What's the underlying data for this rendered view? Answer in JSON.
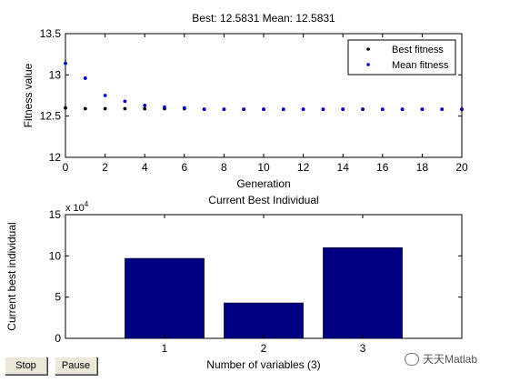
{
  "controls": {
    "stop_label": "Stop",
    "pause_label": "Pause"
  },
  "watermark": {
    "text": "天天Matlab",
    "icon": "wechat-icon"
  },
  "chart_data": [
    {
      "type": "scatter",
      "title": "Best: 12.5831 Mean: 12.5831",
      "xlabel": "Generation",
      "ylabel": "Fitness value",
      "xlim": [
        0,
        20
      ],
      "ylim": [
        12,
        13.5
      ],
      "xticks": [
        0,
        2,
        4,
        6,
        8,
        10,
        12,
        14,
        16,
        18,
        20
      ],
      "yticks": [
        12,
        12.5,
        13,
        13.5
      ],
      "grid": false,
      "legend_position": "top-right",
      "series": [
        {
          "name": "Best fitness",
          "color": "#000000",
          "x": [
            0,
            1,
            2,
            3,
            4,
            5,
            6,
            7,
            8,
            9,
            10,
            11,
            12,
            13,
            14,
            15,
            16,
            17,
            18,
            19,
            20
          ],
          "values": [
            12.6,
            12.59,
            12.59,
            12.59,
            12.59,
            12.59,
            12.59,
            12.5831,
            12.5831,
            12.5831,
            12.5831,
            12.5831,
            12.5831,
            12.5831,
            12.5831,
            12.5831,
            12.5831,
            12.5831,
            12.5831,
            12.5831,
            12.5831
          ]
        },
        {
          "name": "Mean fitness",
          "color": "#0000cc",
          "x": [
            0,
            1,
            2,
            3,
            4,
            5,
            6,
            7,
            8,
            9,
            10,
            11,
            12,
            13,
            14,
            15,
            16,
            17,
            18,
            19,
            20
          ],
          "values": [
            13.14,
            12.96,
            12.75,
            12.68,
            12.63,
            12.61,
            12.6,
            12.5831,
            12.5831,
            12.5831,
            12.5831,
            12.5831,
            12.5831,
            12.5831,
            12.5831,
            12.5831,
            12.5831,
            12.5831,
            12.5831,
            12.5831,
            12.5831
          ]
        }
      ]
    },
    {
      "type": "bar",
      "title": "Current Best Individual",
      "xlabel": "Number of variables (3)",
      "ylabel": "Current best individual",
      "exponent_label": "x 10",
      "exponent_power": "4",
      "categories": [
        "1",
        "2",
        "3"
      ],
      "values": [
        97000,
        43000,
        110000
      ],
      "ylim": [
        0,
        150000
      ],
      "yticks": [
        0,
        5,
        10,
        15
      ],
      "bar_color": "#000080",
      "grid": false
    }
  ]
}
